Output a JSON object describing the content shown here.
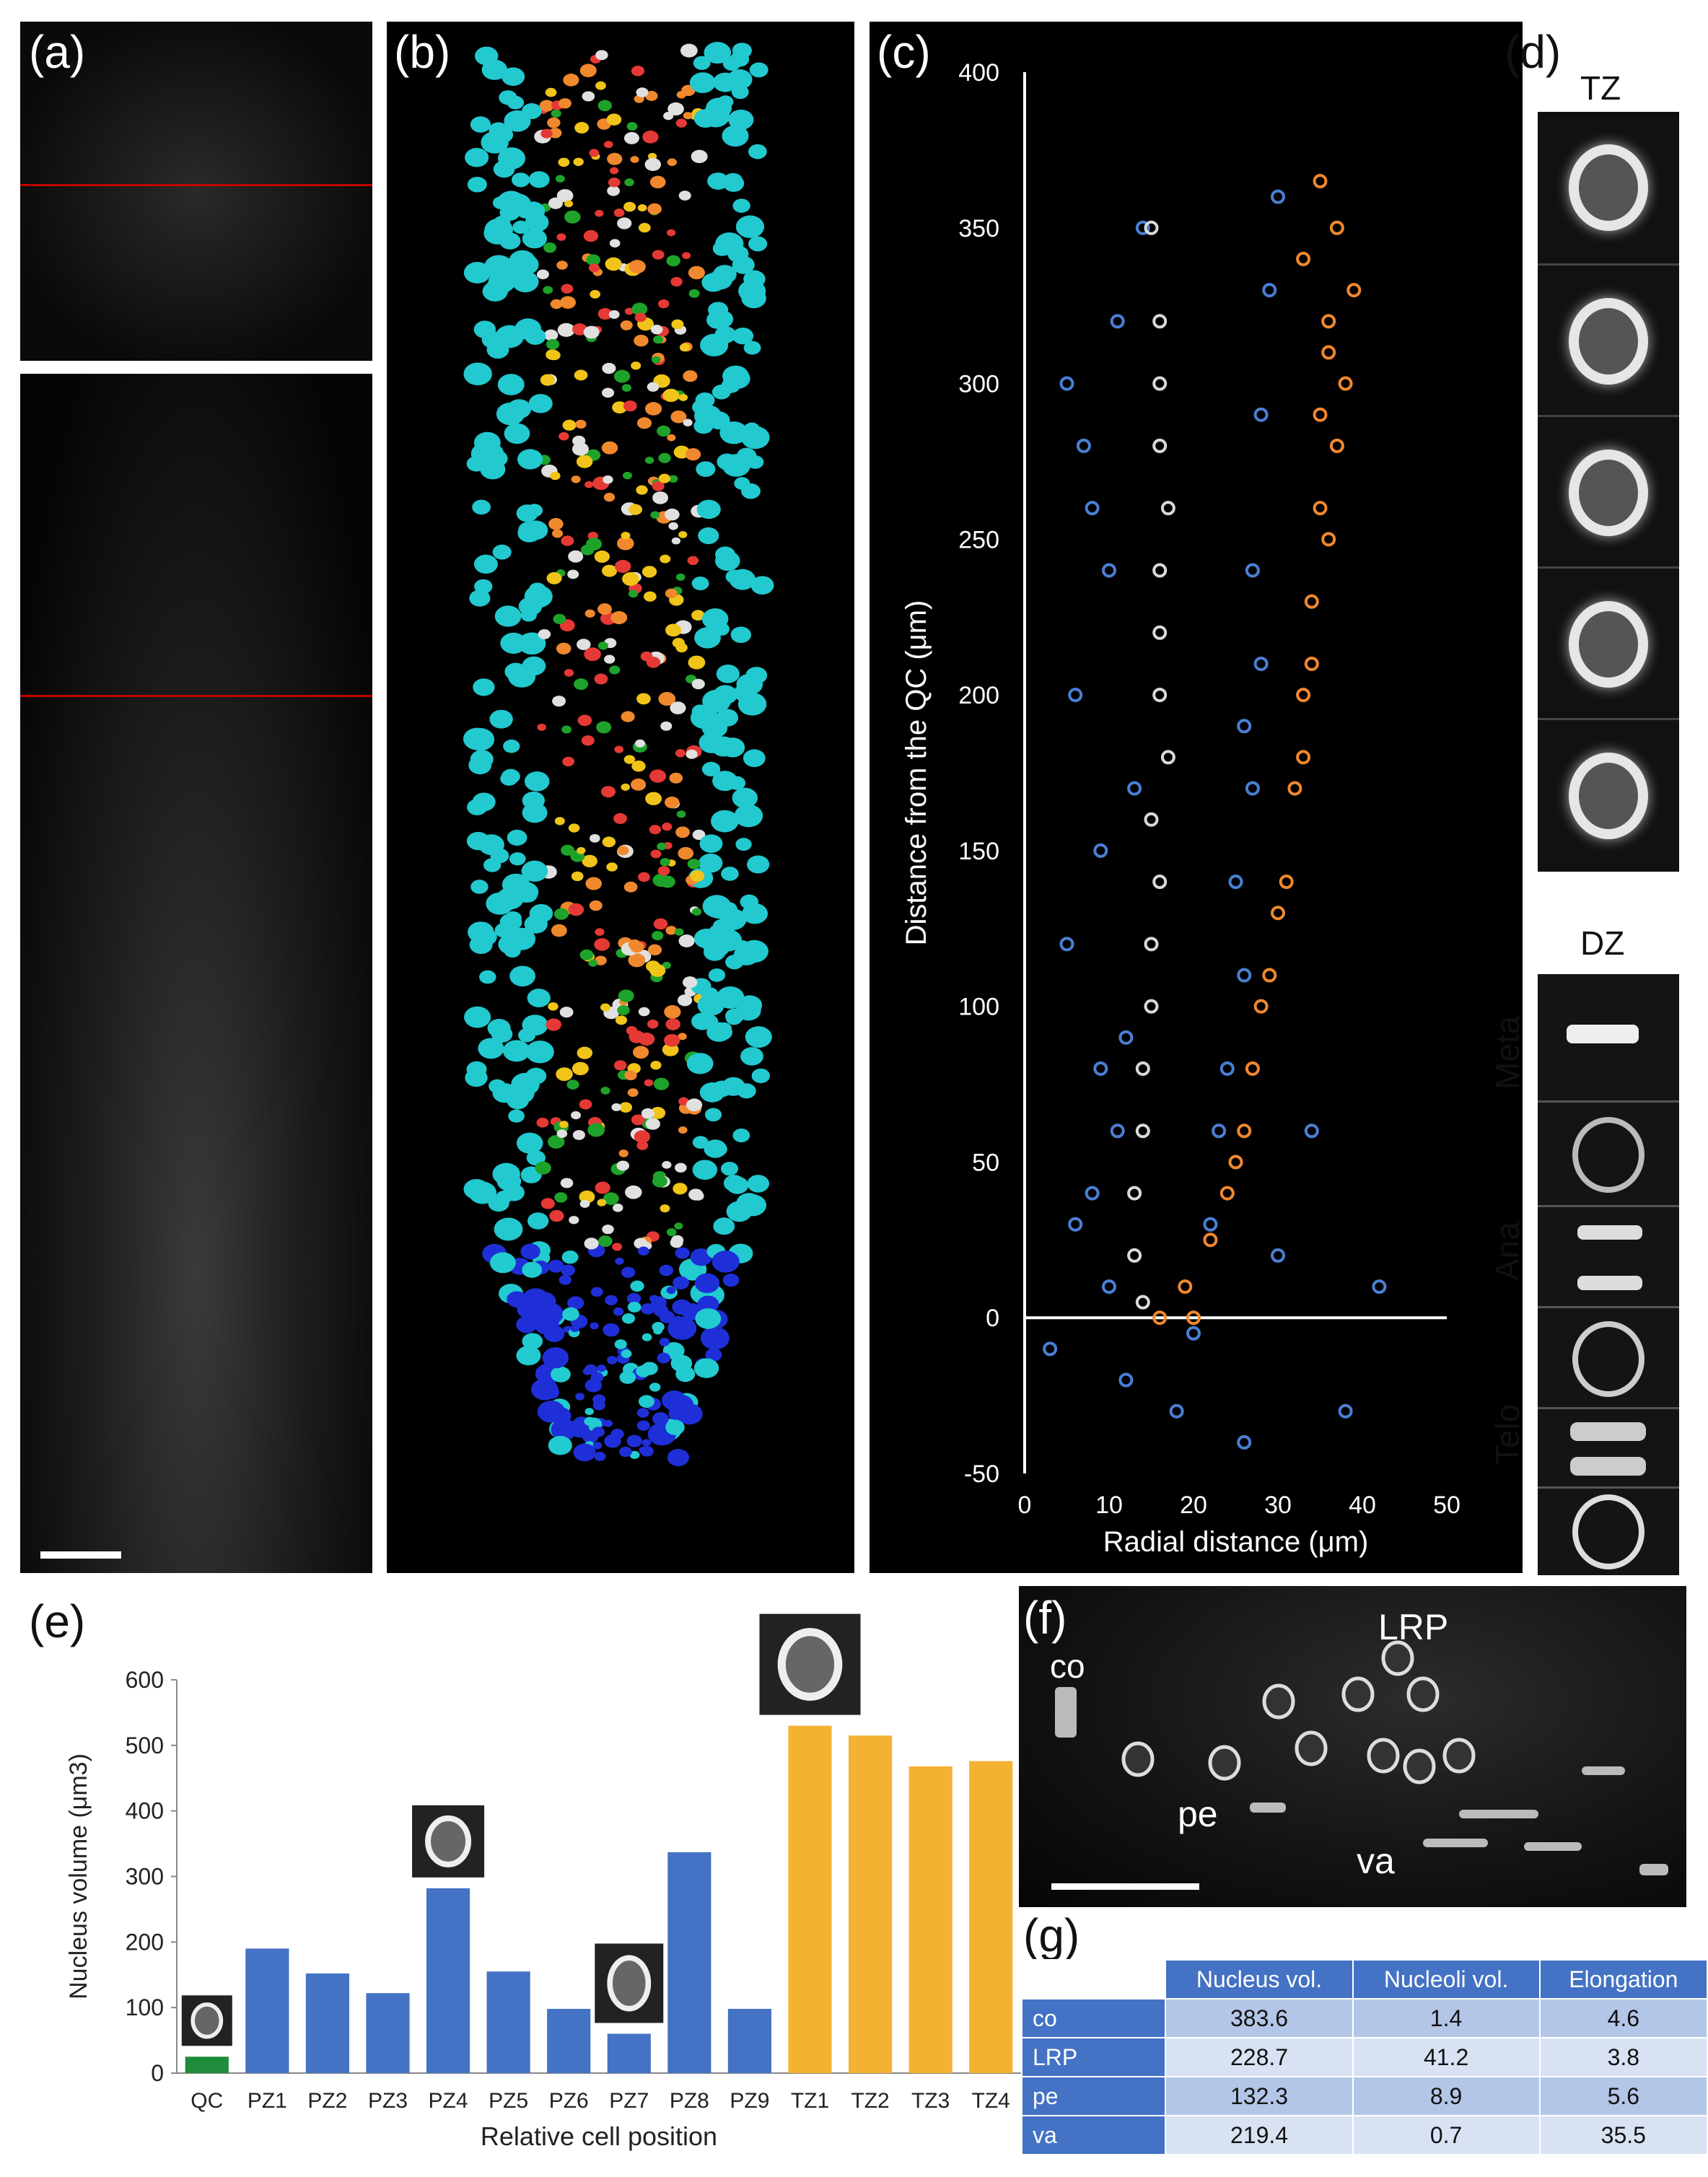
{
  "panels": {
    "a": {
      "label": "(a)"
    },
    "b": {
      "label": "(b)"
    },
    "c": {
      "label": "(c)"
    },
    "d": {
      "label": "(d)",
      "tz_label": "TZ",
      "dz_label": "DZ",
      "phase_labels": [
        "Meta",
        "Ana",
        "Telo"
      ]
    },
    "e": {
      "label": "(e)"
    },
    "f": {
      "label": "(f)",
      "annotations": {
        "co": "co",
        "lrp": "LRP",
        "pe": "pe",
        "va": "va"
      }
    },
    "g": {
      "label": "(g)"
    }
  },
  "chart_data": [
    {
      "type": "scatter",
      "xlabel": "Radial distance (μm)",
      "ylabel": "Distance from the QC (μm)",
      "xlim": [
        0,
        50
      ],
      "ylim": [
        -50,
        400
      ],
      "xticks": [
        "0",
        "10",
        "20",
        "30",
        "40",
        "50"
      ],
      "yticks": [
        "-50",
        "0",
        "50",
        "100",
        "150",
        "200",
        "250",
        "300",
        "350",
        "400"
      ],
      "background": "#000000",
      "series": [
        {
          "color": "#4a7fd4",
          "points": [
            [
              3,
              -10
            ],
            [
              5,
              120
            ],
            [
              6,
              200
            ],
            [
              7,
              280
            ],
            [
              8,
              40
            ],
            [
              9,
              150
            ],
            [
              10,
              240
            ],
            [
              11,
              320
            ],
            [
              12,
              90
            ],
            [
              13,
              170
            ],
            [
              11,
              60
            ],
            [
              6,
              30
            ],
            [
              14,
              350
            ],
            [
              8,
              260
            ],
            [
              10,
              10
            ],
            [
              12,
              -20
            ],
            [
              20,
              -5
            ],
            [
              22,
              30
            ],
            [
              24,
              80
            ],
            [
              25,
              140
            ],
            [
              26,
              190
            ],
            [
              27,
              240
            ],
            [
              28,
              290
            ],
            [
              29,
              330
            ],
            [
              30,
              360
            ],
            [
              23,
              60
            ],
            [
              26,
              110
            ],
            [
              30,
              20
            ],
            [
              34,
              60
            ],
            [
              38,
              -30
            ],
            [
              42,
              10
            ],
            [
              18,
              -30
            ],
            [
              26,
              -40
            ],
            [
              5,
              300
            ],
            [
              9,
              80
            ],
            [
              27,
              170
            ],
            [
              28,
              210
            ]
          ]
        },
        {
          "color": "#d9d9d9",
          "points": [
            [
              13,
              40
            ],
            [
              14,
              80
            ],
            [
              15,
              120
            ],
            [
              15,
              160
            ],
            [
              16,
              200
            ],
            [
              16,
              240
            ],
            [
              16,
              280
            ],
            [
              16,
              320
            ],
            [
              15,
              350
            ],
            [
              14,
              60
            ],
            [
              15,
              100
            ],
            [
              16,
              140
            ],
            [
              17,
              180
            ],
            [
              16,
              220
            ],
            [
              17,
              260
            ],
            [
              16,
              300
            ],
            [
              13,
              20
            ],
            [
              14,
              5
            ]
          ]
        },
        {
          "color": "#f0882e",
          "points": [
            [
              16,
              0
            ],
            [
              19,
              10
            ],
            [
              22,
              25
            ],
            [
              25,
              50
            ],
            [
              27,
              80
            ],
            [
              29,
              110
            ],
            [
              31,
              140
            ],
            [
              32,
              170
            ],
            [
              33,
              200
            ],
            [
              34,
              230
            ],
            [
              35,
              260
            ],
            [
              35,
              290
            ],
            [
              36,
              320
            ],
            [
              37,
              350
            ],
            [
              35,
              365
            ],
            [
              20,
              0
            ],
            [
              24,
              40
            ],
            [
              28,
              100
            ],
            [
              30,
              130
            ],
            [
              33,
              180
            ],
            [
              34,
              210
            ],
            [
              36,
              250
            ],
            [
              37,
              280
            ],
            [
              36,
              310
            ],
            [
              33,
              340
            ],
            [
              39,
              330
            ],
            [
              38,
              300
            ],
            [
              26,
              60
            ]
          ]
        }
      ]
    },
    {
      "type": "bar",
      "xlabel": "Relative cell position",
      "ylabel": "Nucleus volume (μm3)",
      "ylim": [
        0,
        600
      ],
      "yticks": [
        "0",
        "100",
        "200",
        "300",
        "400",
        "500",
        "600"
      ],
      "categories": [
        "QC",
        "PZ1",
        "PZ2",
        "PZ3",
        "PZ4",
        "PZ5",
        "PZ6",
        "PZ7",
        "PZ8",
        "PZ9",
        "TZ1",
        "TZ2",
        "TZ3",
        "TZ4"
      ],
      "values": [
        25,
        190,
        152,
        122,
        282,
        155,
        98,
        60,
        337,
        98,
        530,
        515,
        468,
        476
      ],
      "colors": [
        "#1e8c3a",
        "#4472c4",
        "#4472c4",
        "#4472c4",
        "#4472c4",
        "#4472c4",
        "#4472c4",
        "#4472c4",
        "#4472c4",
        "#4472c4",
        "#f4b233",
        "#f4b233",
        "#f4b233",
        "#f4b233"
      ]
    },
    {
      "type": "table",
      "columns": [
        "",
        "Nucleus vol.",
        "Nucleoli vol.",
        "Elongation"
      ],
      "rows": [
        [
          "co",
          "383.6",
          "1.4",
          "4.6"
        ],
        [
          "LRP",
          "228.7",
          "41.2",
          "3.8"
        ],
        [
          "pe",
          "132.3",
          "8.9",
          "5.6"
        ],
        [
          "va",
          "219.4",
          "0.7",
          "35.5"
        ]
      ]
    }
  ]
}
